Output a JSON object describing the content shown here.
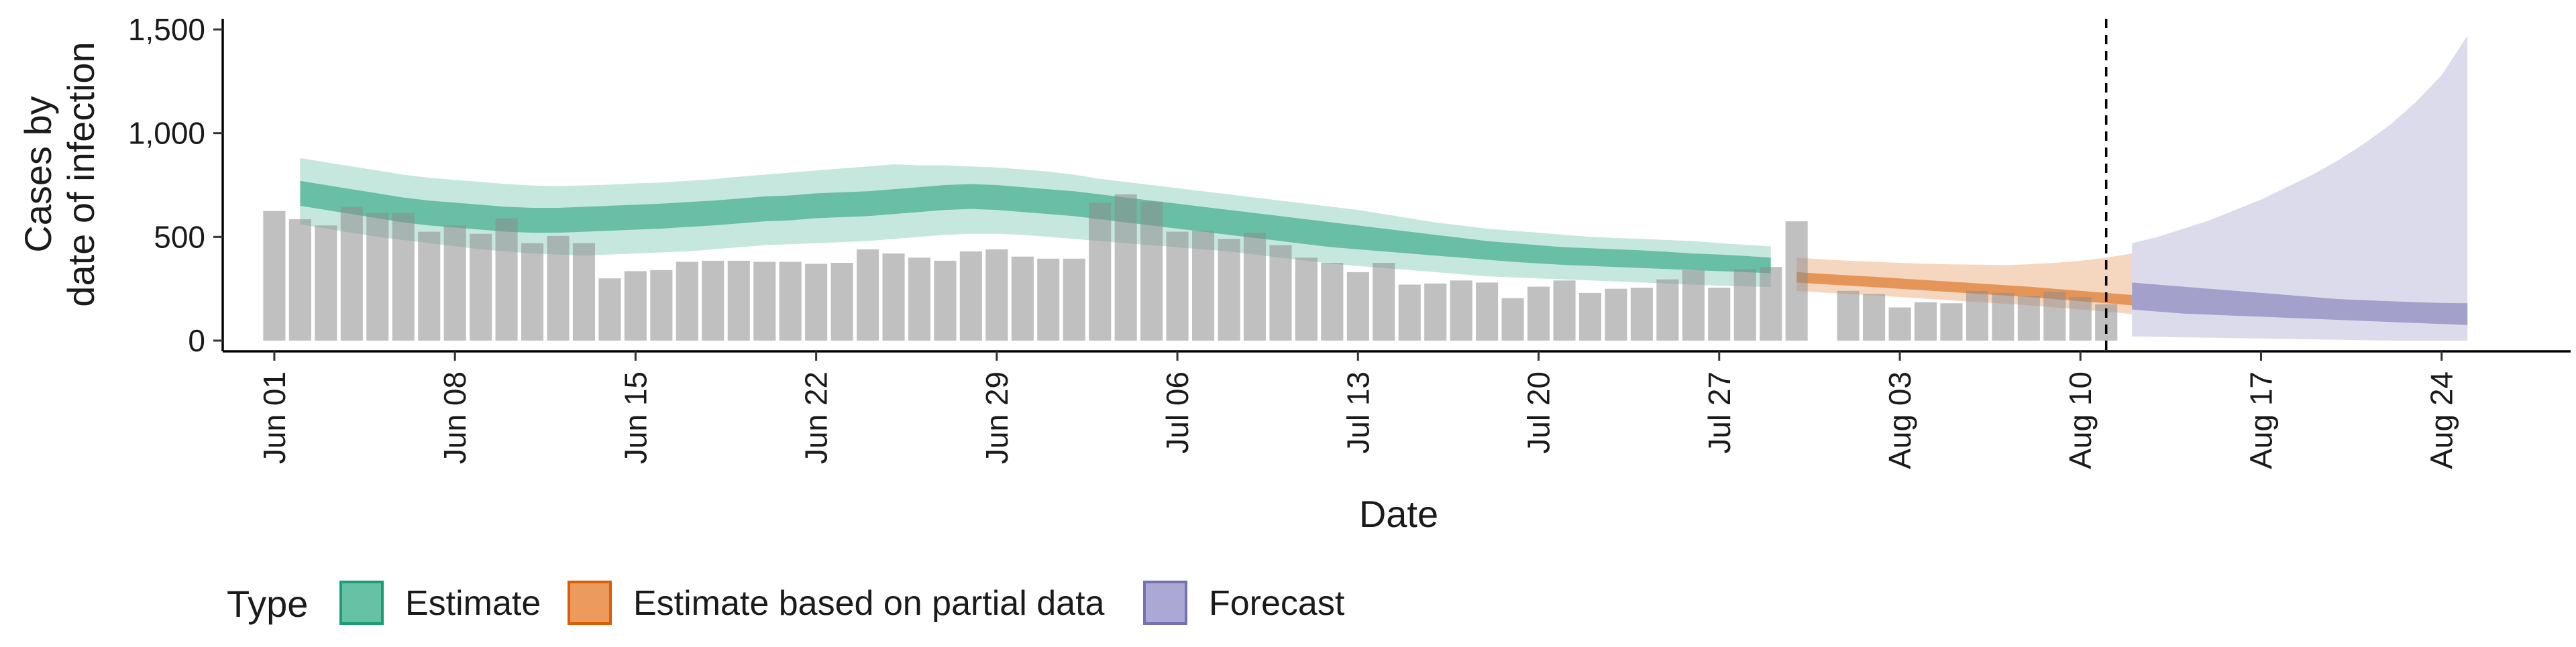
{
  "chart_data": {
    "type": "bar",
    "xlabel": "Date",
    "ylabel_lines": [
      "Cases by",
      "date of infection"
    ],
    "ylim": [
      0,
      1500
    ],
    "yticks": [
      0,
      500,
      1000,
      1500
    ],
    "ytick_labels": [
      "0",
      "500",
      "1,000",
      "1,500"
    ],
    "xlim": [
      "2020-05-30",
      "2020-08-29"
    ],
    "xticks": [
      "2020-06-01",
      "2020-06-08",
      "2020-06-15",
      "2020-06-22",
      "2020-06-29",
      "2020-07-06",
      "2020-07-13",
      "2020-07-20",
      "2020-07-27",
      "2020-08-03",
      "2020-08-10",
      "2020-08-17",
      "2020-08-24"
    ],
    "xtick_labels": [
      "Jun 01",
      "Jun 08",
      "Jun 15",
      "Jun 22",
      "Jun 29",
      "Jul 06",
      "Jul 13",
      "Jul 20",
      "Jul 27",
      "Aug 03",
      "Aug 10",
      "Aug 17",
      "Aug 24"
    ],
    "grid": false,
    "legend_position": "bottom",
    "vline_date": "2020-08-11",
    "reported_cases": {
      "start_date": "2020-06-01",
      "values": [
        625,
        585,
        555,
        645,
        615,
        615,
        525,
        555,
        515,
        590,
        470,
        505,
        470,
        300,
        335,
        340,
        380,
        385,
        385,
        380,
        380,
        370,
        375,
        440,
        420,
        400,
        385,
        430,
        440,
        405,
        395,
        395,
        665,
        705,
        670,
        525,
        530,
        490,
        520,
        460,
        400,
        375,
        330,
        375,
        270,
        275,
        290,
        280,
        205,
        260,
        290,
        230,
        250,
        255,
        295,
        340,
        255,
        345,
        355,
        575,
        null,
        240,
        225,
        160,
        185,
        180,
        240,
        230,
        215,
        235,
        210,
        175
      ]
    },
    "series": [
      {
        "name": "Estimate",
        "color": "#1b9e77",
        "start_date": "2020-06-02",
        "lower90": [
          560,
          540,
          520,
          500,
          485,
          470,
          455,
          440,
          430,
          420,
          415,
          410,
          415,
          420,
          425,
          430,
          440,
          450,
          460,
          465,
          470,
          475,
          480,
          490,
          500,
          510,
          515,
          515,
          510,
          500,
          490,
          480,
          470,
          460,
          450,
          440,
          430,
          415,
          400,
          385,
          370,
          360,
          350,
          340,
          330,
          320,
          310,
          305,
          300,
          295,
          290,
          285,
          280,
          275,
          270,
          265,
          262,
          258
        ],
        "lower50": [
          650,
          630,
          610,
          590,
          570,
          555,
          545,
          535,
          525,
          520,
          520,
          525,
          530,
          535,
          540,
          548,
          555,
          565,
          575,
          580,
          590,
          595,
          600,
          610,
          620,
          630,
          635,
          630,
          620,
          610,
          600,
          585,
          570,
          555,
          540,
          525,
          510,
          495,
          480,
          465,
          450,
          440,
          430,
          420,
          410,
          400,
          390,
          380,
          372,
          365,
          360,
          355,
          350,
          345,
          340,
          335,
          330,
          325
        ],
        "upper50": [
          770,
          750,
          730,
          710,
          690,
          675,
          665,
          655,
          645,
          640,
          640,
          645,
          650,
          655,
          660,
          668,
          675,
          685,
          695,
          700,
          710,
          715,
          720,
          730,
          740,
          750,
          755,
          750,
          740,
          730,
          720,
          705,
          690,
          675,
          660,
          645,
          630,
          615,
          600,
          585,
          570,
          555,
          540,
          525,
          510,
          495,
          480,
          470,
          460,
          450,
          445,
          440,
          435,
          428,
          420,
          415,
          408,
          400
        ],
        "upper90": [
          880,
          860,
          840,
          820,
          800,
          785,
          775,
          765,
          755,
          748,
          745,
          748,
          752,
          758,
          762,
          770,
          778,
          790,
          800,
          810,
          820,
          830,
          840,
          850,
          845,
          845,
          840,
          835,
          825,
          815,
          800,
          780,
          765,
          750,
          735,
          720,
          705,
          690,
          675,
          660,
          645,
          630,
          610,
          590,
          570,
          555,
          540,
          530,
          520,
          510,
          500,
          495,
          490,
          485,
          480,
          470,
          462,
          455
        ]
      },
      {
        "name": "Estimate based on partial data",
        "color": "#d95f02",
        "start_date": "2020-07-30",
        "lower90": [
          240,
          232,
          225,
          218,
          210,
          202,
          194,
          186,
          178,
          170,
          160,
          150,
          140,
          128
        ],
        "lower50": [
          280,
          272,
          265,
          258,
          250,
          242,
          234,
          226,
          218,
          210,
          200,
          190,
          180,
          170
        ],
        "upper50": [
          330,
          322,
          315,
          308,
          300,
          292,
          284,
          276,
          268,
          260,
          250,
          240,
          230,
          220
        ],
        "upper90": [
          400,
          392,
          385,
          380,
          375,
          370,
          368,
          366,
          364,
          368,
          375,
          385,
          400,
          420
        ]
      },
      {
        "name": "Forecast",
        "color": "#7570b3",
        "start_date": "2020-08-12",
        "lower90": [
          20,
          18,
          16,
          14,
          12,
          10,
          8,
          6,
          4,
          2,
          0,
          0,
          0,
          0
        ],
        "lower50": [
          150,
          140,
          130,
          125,
          120,
          115,
          110,
          105,
          100,
          95,
          90,
          85,
          80,
          75
        ],
        "upper50": [
          280,
          270,
          260,
          250,
          240,
          230,
          220,
          210,
          200,
          195,
          190,
          185,
          182,
          180
        ],
        "upper90": [
          470,
          500,
          540,
          580,
          630,
          680,
          740,
          800,
          870,
          950,
          1040,
          1150,
          1280,
          1470
        ]
      }
    ]
  },
  "legend": {
    "title": "Type",
    "items": [
      {
        "label": "Estimate",
        "fill": "#66c2a5",
        "stroke": "#1b9e77"
      },
      {
        "label": "Estimate based on partial data",
        "fill": "#ec9a5e",
        "stroke": "#d95f02"
      },
      {
        "label": "Forecast",
        "fill": "#aba8d6",
        "stroke": "#7570b3"
      }
    ]
  }
}
